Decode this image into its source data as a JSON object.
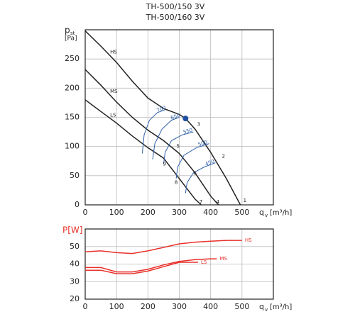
{
  "title_lines": [
    "TH-500/150 3V",
    "TH-500/160 3V"
  ],
  "chart_data": [
    {
      "type": "line",
      "y_label": "p",
      "y_label_sub": "st",
      "y_label_unit": "[Pa]",
      "x_label": "q",
      "x_label_sub": "v",
      "x_label_unit": "[m³/h]",
      "xlim": [
        0,
        600
      ],
      "xticks": [
        0,
        100,
        200,
        300,
        400,
        500
      ],
      "ylim": [
        0,
        300
      ],
      "yticks": [
        0,
        50,
        100,
        150,
        200,
        250
      ],
      "grid": true,
      "series": [
        {
          "name": "HS",
          "color": "#222222",
          "label_at": "start",
          "x": [
            0,
            50,
            100,
            150,
            200,
            250,
            300,
            320,
            350,
            400,
            450,
            495
          ],
          "values": [
            298,
            272,
            244,
            212,
            183,
            165,
            155,
            148,
            130,
            90,
            45,
            0
          ]
        },
        {
          "name": "MS",
          "color": "#222222",
          "label_at": "start",
          "x": [
            0,
            50,
            100,
            150,
            200,
            250,
            300,
            350,
            400,
            425
          ],
          "values": [
            232,
            205,
            176,
            150,
            128,
            110,
            88,
            55,
            15,
            0
          ]
        },
        {
          "name": "LS",
          "color": "#222222",
          "label_at": "start",
          "x": [
            0,
            50,
            100,
            150,
            200,
            250,
            300,
            350,
            370
          ],
          "values": [
            180,
            160,
            140,
            118,
            98,
            80,
            45,
            10,
            0
          ]
        },
        {
          "name": "700",
          "color": "#2e5fa8",
          "label_at": "end",
          "x": [
            182,
            188,
            205,
            230,
            255
          ],
          "values": [
            88,
            120,
            145,
            158,
            163
          ]
        },
        {
          "name": "650",
          "color": "#2e5fa8",
          "label_at": "end",
          "x": [
            215,
            222,
            245,
            275,
            300
          ],
          "values": [
            78,
            105,
            130,
            145,
            150
          ]
        },
        {
          "name": "550",
          "color": "#2e5fa8",
          "label_at": "end",
          "x": [
            250,
            255,
            275,
            310,
            345
          ],
          "values": [
            70,
            90,
            110,
            120,
            125
          ]
        },
        {
          "name": "500",
          "color": "#2e5fa8",
          "label_at": "end",
          "x": [
            290,
            295,
            315,
            355,
            395
          ],
          "values": [
            45,
            65,
            85,
            98,
            105
          ]
        },
        {
          "name": "450",
          "color": "#2e5fa8",
          "label_at": "end",
          "x": [
            320,
            325,
            345,
            380,
            415
          ],
          "values": [
            20,
            38,
            55,
            65,
            72
          ]
        }
      ],
      "points": [
        {
          "x": 320,
          "y": 148,
          "color": "#1f4fa0"
        }
      ],
      "point_labels": [
        {
          "text": "1",
          "x": 509,
          "y": 7
        },
        {
          "text": "2",
          "x": 441,
          "y": 83
        },
        {
          "text": "3",
          "x": 362,
          "y": 138
        },
        {
          "text": "4",
          "x": 423,
          "y": 5
        },
        {
          "text": "5",
          "x": 296,
          "y": 100
        },
        {
          "text": "6",
          "x": 350,
          "y": 54
        },
        {
          "text": "7",
          "x": 369,
          "y": 5
        },
        {
          "text": "8",
          "x": 290,
          "y": 38
        },
        {
          "text": "9",
          "x": 253,
          "y": 70
        }
      ]
    },
    {
      "type": "line",
      "y_label": "P[W]",
      "x_label": "q",
      "x_label_sub": "v",
      "x_label_unit": "[m³/h]",
      "xlim": [
        0,
        600
      ],
      "xticks": [
        0,
        100,
        200,
        300,
        400,
        500
      ],
      "ylim": [
        20,
        60
      ],
      "yticks": [
        20,
        30,
        40,
        50
      ],
      "grid": true,
      "series": [
        {
          "name": "HS",
          "color": "#e8302a",
          "label_at": "end",
          "x": [
            0,
            50,
            100,
            150,
            200,
            250,
            300,
            350,
            400,
            450,
            500
          ],
          "values": [
            47,
            47.5,
            46.5,
            46,
            47.5,
            49.5,
            51.5,
            52.5,
            53,
            53.5,
            53.5
          ]
        },
        {
          "name": "MS",
          "color": "#e8302a",
          "label_at": "end",
          "x": [
            0,
            50,
            100,
            150,
            200,
            250,
            300,
            350,
            400,
            420
          ],
          "values": [
            38,
            38,
            35.5,
            35.5,
            37,
            39.5,
            41.5,
            42.5,
            43,
            43
          ]
        },
        {
          "name": "LS",
          "color": "#e8302a",
          "label_at": "end",
          "x": [
            0,
            50,
            100,
            150,
            200,
            250,
            300,
            360
          ],
          "values": [
            36.5,
            36.5,
            34.5,
            34.5,
            36,
            38.5,
            41,
            41
          ]
        }
      ]
    }
  ]
}
